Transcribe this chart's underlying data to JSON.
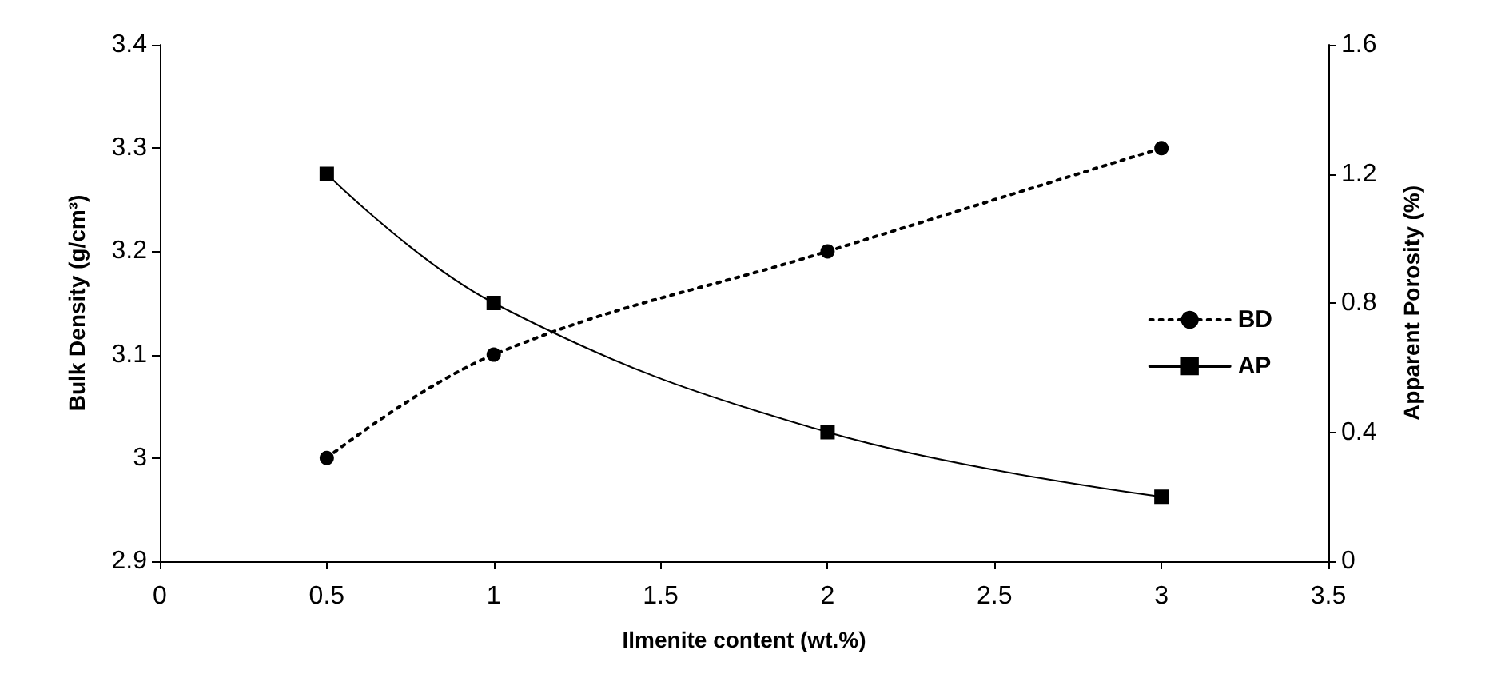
{
  "chart_data": {
    "type": "line",
    "xlabel": "Ilmenite content (wt.%)",
    "ylabel": "Bulk Density (g/cm³)",
    "y2label": "Apparent Porosity (%)",
    "xlim": [
      0,
      3.5
    ],
    "xticks": [
      0,
      0.5,
      1,
      1.5,
      2,
      2.5,
      3,
      3.5
    ],
    "ylim": [
      2.9,
      3.4
    ],
    "yticks": [
      2.9,
      3,
      3.1,
      3.2,
      3.3,
      3.4
    ],
    "y2lim": [
      0,
      1.6
    ],
    "y2ticks": [
      0,
      0.4,
      0.8,
      1.2,
      1.6
    ],
    "grid": false,
    "legend": "right",
    "series": [
      {
        "name": "BD",
        "color": "#000000",
        "x": [
          0.5,
          1,
          2,
          3
        ],
        "values": [
          3.0,
          3.1,
          3.2,
          3.3
        ],
        "marker": "circle",
        "line_style": "dotted"
      },
      {
        "name": "AP",
        "color": "#000000",
        "x": [
          0.5,
          1,
          2,
          3
        ],
        "values": [
          1.2,
          0.8,
          0.4,
          0.2
        ],
        "marker": "square",
        "line_style": "solid",
        "axis": "y2"
      }
    ]
  }
}
